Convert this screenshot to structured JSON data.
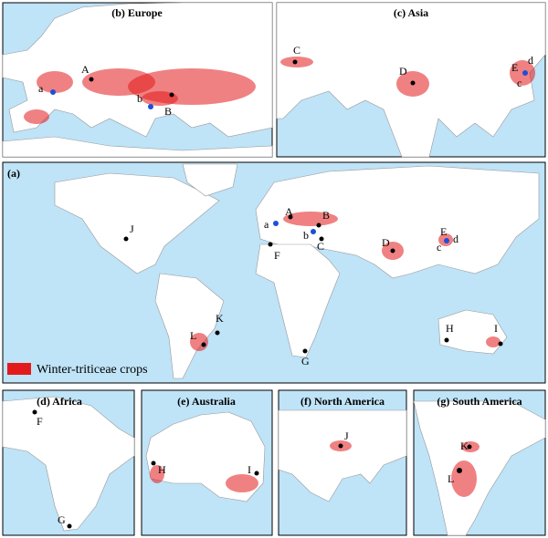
{
  "panels": [
    {
      "title": "(b) Europe",
      "labels": [
        "A",
        "a",
        "b",
        "B"
      ]
    },
    {
      "title": "(c) Asia",
      "labels": [
        "C",
        "D",
        "E",
        "d",
        "c"
      ]
    },
    {
      "title": "(a)",
      "labels": [
        "A",
        "a",
        "B",
        "b",
        "C",
        "D",
        "E",
        "d",
        "c",
        "F",
        "J",
        "K",
        "L",
        "G",
        "H",
        "I"
      ]
    },
    {
      "title": "(d) Africa",
      "labels": [
        "F",
        "G"
      ]
    },
    {
      "title": "(e) Australia",
      "labels": [
        "H",
        "I"
      ]
    },
    {
      "title": "(f) North America",
      "labels": [
        "J"
      ]
    },
    {
      "title": "(g) South America",
      "labels": [
        "K",
        "L"
      ]
    }
  ],
  "legend": "Winter-triticeae crops"
}
